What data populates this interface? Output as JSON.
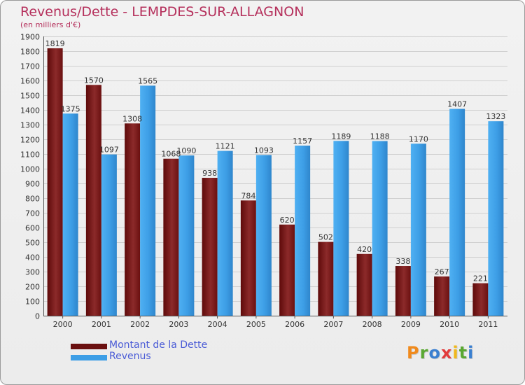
{
  "chart_data": {
    "type": "bar",
    "title": "Revenus/Dette - LEMPDES-SUR-ALLAGNON",
    "subtitle": "(en milliers d'€)",
    "categories": [
      "2000",
      "2001",
      "2002",
      "2003",
      "2004",
      "2005",
      "2006",
      "2007",
      "2008",
      "2009",
      "2010",
      "2011"
    ],
    "series": [
      {
        "name": "Montant de la Dette",
        "color": "#7a1414",
        "values": [
          1819,
          1570,
          1308,
          1068,
          938,
          784,
          620,
          502,
          420,
          338,
          267,
          221
        ]
      },
      {
        "name": "Revenus",
        "color": "#3d9ee6",
        "values": [
          1375,
          1097,
          1565,
          1090,
          1121,
          1093,
          1157,
          1189,
          1188,
          1170,
          1407,
          1323
        ]
      }
    ],
    "ylim": [
      0,
      1900
    ],
    "ytick_step": 100,
    "grid": true
  },
  "legend": {
    "debt_label": "Montant de la Dette",
    "revenue_label": "Revenus"
  },
  "logo": {
    "letters": [
      "P",
      "r",
      "o",
      "x",
      "i",
      "t",
      "i"
    ],
    "colors": [
      "#f08a1c",
      "#5aa832",
      "#3a7fd0",
      "#e23a3a",
      "#f0b81c",
      "#5aa832",
      "#3a7fd0"
    ]
  }
}
